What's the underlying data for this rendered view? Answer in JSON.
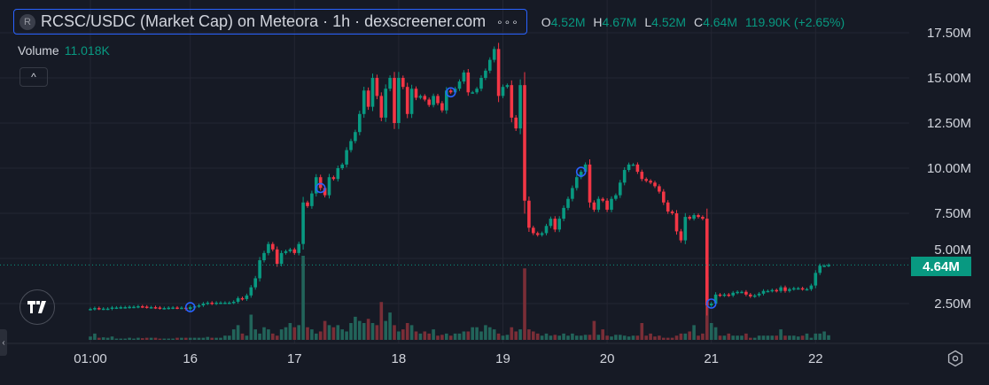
{
  "header": {
    "symbol_initial": "R",
    "title": "RCSC/USDC (Market Cap) on Meteora · 1h · dexscreener.com",
    "more_icon": "ellipsis-icon",
    "ohlc": {
      "o_label": "O",
      "o": "4.52M",
      "h_label": "H",
      "h": "4.67M",
      "l_label": "L",
      "l": "4.52M",
      "c_label": "C",
      "c": "4.64M",
      "change": "119.90K (+2.65%)"
    }
  },
  "volume_legend": {
    "label": "Volume",
    "value": "11.018K"
  },
  "collapse_icon": "chevron-up-icon",
  "last_price_badge": "4.64M",
  "logo_text": "TV",
  "colors": {
    "up": "#089981",
    "down": "#f23645",
    "vol_up": "#22645a",
    "vol_down": "#7a2e37",
    "grid": "#232632",
    "marker": "#2962ff"
  },
  "chart_data": {
    "type": "candlestick",
    "title": "RCSC/USDC (Market Cap) on Meteora · 1h · dexscreener.com",
    "y_unit": "M",
    "ylim": [
      0.5,
      18.5
    ],
    "y_ticks": [
      "2.50M",
      "5.00M",
      "7.50M",
      "10.00M",
      "12.50M",
      "15.00M",
      "17.50M"
    ],
    "y_tick_values": [
      2.5,
      5,
      7.5,
      10,
      12.5,
      15,
      17.5
    ],
    "x_ticks": [
      {
        "label": "01:00",
        "index": 0
      },
      {
        "label": "16",
        "index": 23
      },
      {
        "label": "17",
        "index": 47
      },
      {
        "label": "18",
        "index": 71
      },
      {
        "label": "19",
        "index": 95
      },
      {
        "label": "20",
        "index": 119
      },
      {
        "label": "21",
        "index": 143
      },
      {
        "label": "22",
        "index": 167
      }
    ],
    "grid": true,
    "first_open": 2.2,
    "closes": [
      2.2,
      2.25,
      2.22,
      2.22,
      2.22,
      2.28,
      2.28,
      2.3,
      2.3,
      2.32,
      2.32,
      2.35,
      2.33,
      2.3,
      2.3,
      2.28,
      2.25,
      2.25,
      2.27,
      2.28,
      2.27,
      2.27,
      2.2,
      2.3,
      2.35,
      2.4,
      2.5,
      2.55,
      2.5,
      2.55,
      2.55,
      2.55,
      2.55,
      2.6,
      2.8,
      2.75,
      2.95,
      3.4,
      3.9,
      4.9,
      5.3,
      5.8,
      5.5,
      4.7,
      5.3,
      5.4,
      5.5,
      5.3,
      5.8,
      8.1,
      7.9,
      8.6,
      9.5,
      8.9,
      8.5,
      9.5,
      9.4,
      10.0,
      10.2,
      11.0,
      11.5,
      12.0,
      13.0,
      14.3,
      13.4,
      15.0,
      14.0,
      12.8,
      14.4,
      15.0,
      12.5,
      15.0,
      14.5,
      13.0,
      14.4,
      13.9,
      14.0,
      13.8,
      13.5,
      14.0,
      13.6,
      13.2,
      14.3,
      14.2,
      14.4,
      14.8,
      15.3,
      14.2,
      14.2,
      14.4,
      15.0,
      15.4,
      16.0,
      16.6,
      14.0,
      14.5,
      14.6,
      12.8,
      12.2,
      14.6,
      8.2,
      6.7,
      6.4,
      6.3,
      6.4,
      6.8,
      7.2,
      6.6,
      7.2,
      7.8,
      8.3,
      8.9,
      9.5,
      9.8,
      10.2,
      8.1,
      7.7,
      8.3,
      8.2,
      7.7,
      8.3,
      8.5,
      9.2,
      9.9,
      10.2,
      10.2,
      9.8,
      9.4,
      9.3,
      9.2,
      9.0,
      8.7,
      8.1,
      7.6,
      7.5,
      6.5,
      6.0,
      7.3,
      7.2,
      7.4,
      7.3,
      7.2,
      2.4,
      2.5,
      3.0,
      2.95,
      3.0,
      2.95,
      3.1,
      3.15,
      3.15,
      3.0,
      2.9,
      2.95,
      3.05,
      3.2,
      3.2,
      3.25,
      3.2,
      3.4,
      3.2,
      3.3,
      3.35,
      3.35,
      3.3,
      3.3,
      3.5,
      4.2,
      4.6,
      4.6,
      4.64
    ],
    "volume_k": [
      8,
      15,
      5,
      6,
      5,
      8,
      3,
      3,
      3,
      5,
      3,
      5,
      4,
      5,
      5,
      5,
      3,
      3,
      3,
      3,
      5,
      5,
      5,
      5,
      5,
      5,
      5,
      7,
      5,
      5,
      5,
      10,
      10,
      25,
      35,
      15,
      10,
      60,
      25,
      15,
      30,
      25,
      15,
      10,
      25,
      30,
      40,
      30,
      35,
      200,
      30,
      25,
      15,
      20,
      45,
      35,
      30,
      35,
      25,
      20,
      40,
      55,
      45,
      40,
      50,
      40,
      35,
      90,
      45,
      65,
      35,
      20,
      25,
      40,
      35,
      20,
      15,
      20,
      15,
      25,
      10,
      12,
      15,
      10,
      15,
      15,
      20,
      20,
      30,
      30,
      20,
      35,
      30,
      25,
      15,
      10,
      12,
      30,
      20,
      25,
      170,
      25,
      20,
      15,
      10,
      15,
      10,
      12,
      10,
      15,
      10,
      15,
      10,
      10,
      12,
      12,
      45,
      12,
      25,
      10,
      8,
      12,
      12,
      10,
      8,
      10,
      10,
      40,
      10,
      15,
      8,
      10,
      5,
      5,
      5,
      10,
      15,
      15,
      20,
      35,
      10,
      15,
      150,
      40,
      30,
      10,
      10,
      15,
      10,
      10,
      10,
      15,
      5,
      5,
      10,
      10,
      10,
      10,
      10,
      25,
      10,
      10,
      10,
      8,
      10,
      15,
      5,
      15,
      15,
      20,
      11
    ],
    "event_markers": [
      23,
      53,
      83,
      113,
      143
    ],
    "last_price": 4.64
  }
}
